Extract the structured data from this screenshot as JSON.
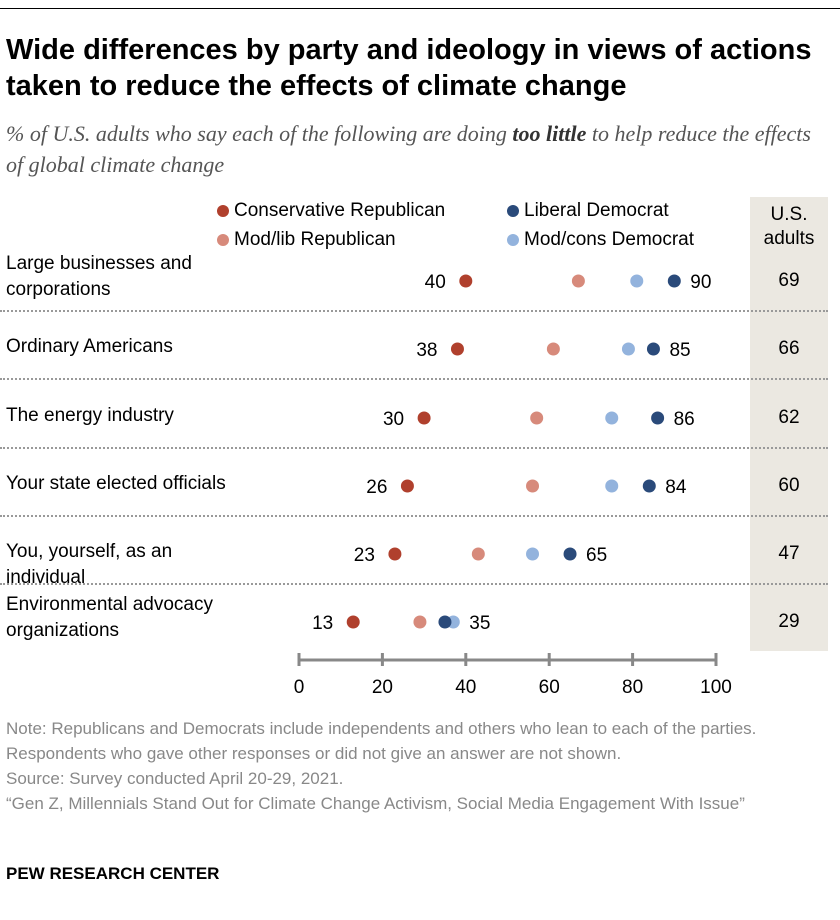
{
  "title": "Wide differences by party and ideology in views of actions taken to reduce the effects of climate change",
  "subtitle_pre": "% of U.S. adults who say each of the following are doing ",
  "subtitle_bold": "too little",
  "subtitle_post": " to help reduce the effects of global climate change",
  "chart_data": {
    "type": "scatter",
    "subtype": "dot-plot",
    "xlim": [
      0,
      100
    ],
    "xticks": [
      "0",
      "20",
      "40",
      "60",
      "80",
      "100"
    ],
    "legend_placement": "top",
    "categories": [
      "Large businesses and corporations",
      "Ordinary Americans",
      "The energy industry",
      "Your state elected officials",
      "You, yourself, as an individual",
      "Environmental advocacy organizations"
    ],
    "series": [
      {
        "name": "Conservative Republican",
        "color": "#b0402d",
        "values": [
          40,
          38,
          30,
          26,
          23,
          13
        ]
      },
      {
        "name": "Mod/lib Republican",
        "color": "#d78a7b",
        "values": [
          67,
          61,
          57,
          56,
          43,
          29
        ]
      },
      {
        "name": "Mod/cons Democrat",
        "color": "#93b3dd",
        "values": [
          81,
          79,
          75,
          75,
          56,
          37
        ]
      },
      {
        "name": "Liberal Democrat",
        "color": "#2a4a7a",
        "values": [
          90,
          85,
          86,
          84,
          65,
          35
        ]
      }
    ],
    "us_adults_header": "U.S. adults",
    "us_adults": [
      69,
      66,
      62,
      60,
      47,
      29
    ]
  },
  "note": "Note: Republicans and Democrats include independents and others who lean to each of the parties. Respondents who gave other responses or did not give an answer are not shown.",
  "source": "Source: Survey conducted April 20-29, 2021.",
  "report": "“Gen Z, Millennials Stand Out for Climate Change Activism, Social Media Engagement With Issue”",
  "brand": "PEW RESEARCH CENTER"
}
